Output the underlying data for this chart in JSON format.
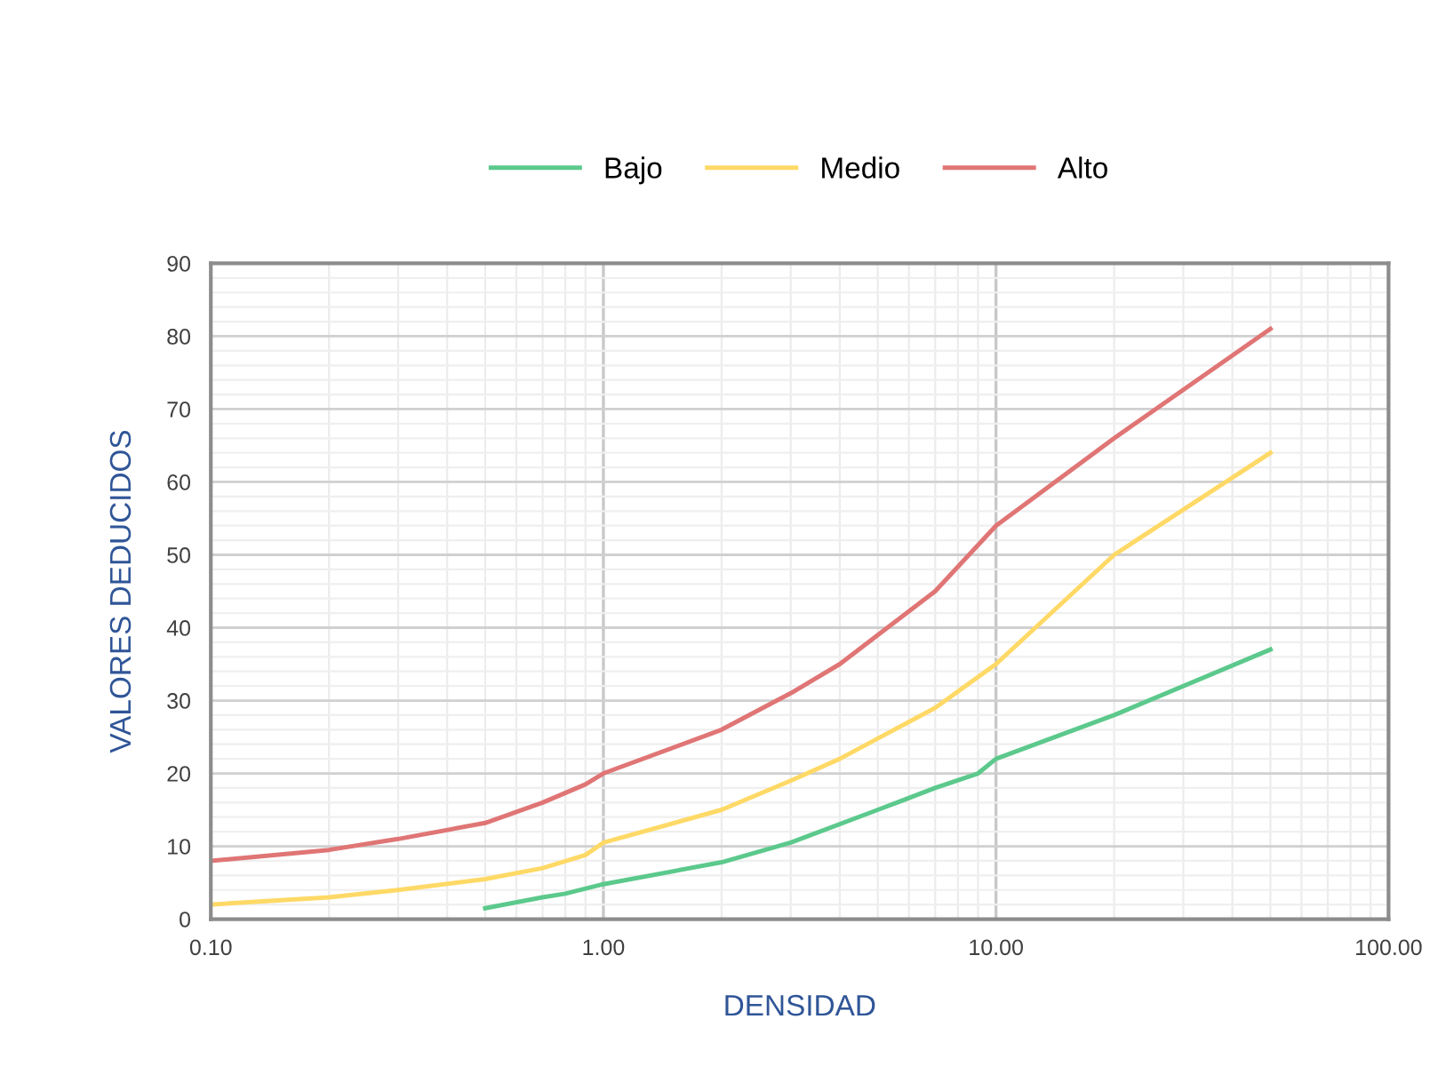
{
  "chart_data": {
    "type": "line",
    "xlabel": "DENSIDAD",
    "ylabel": "VALORES DEDUCIDOS",
    "log": "x",
    "grid": true,
    "legend": "top",
    "marker": "none",
    "line_style": "solid",
    "xlim": [
      0.1,
      100
    ],
    "xticks": [
      {
        "value": 0.1,
        "label": "0.10"
      },
      {
        "value": 1,
        "label": "1.00"
      },
      {
        "value": 10,
        "label": "10.00"
      },
      {
        "value": 100,
        "label": "100.00"
      }
    ],
    "ylim": [
      0,
      90
    ],
    "yticks": [
      0,
      10,
      20,
      30,
      40,
      50,
      60,
      70,
      80,
      90
    ],
    "series": [
      {
        "name": "Bajo",
        "color": "#5cc98c",
        "x": [
          0.5,
          0.7,
          0.8,
          1,
          2,
          3,
          5,
          7,
          9,
          10,
          20,
          50
        ],
        "values": [
          1.5,
          3,
          3.5,
          4.8,
          7.8,
          10.5,
          15,
          18,
          20,
          22,
          28,
          37
        ]
      },
      {
        "name": "Medio",
        "color": "#ffd966",
        "x": [
          0.1,
          0.2,
          0.3,
          0.5,
          0.7,
          0.9,
          1,
          2,
          3,
          4,
          7,
          10,
          20,
          50
        ],
        "values": [
          2,
          3,
          4,
          5.5,
          7,
          8.8,
          10.5,
          15,
          19,
          22,
          29,
          35,
          50,
          64
        ]
      },
      {
        "name": "Alto",
        "color": "#e07575",
        "x": [
          0.1,
          0.2,
          0.3,
          0.5,
          0.7,
          0.9,
          1,
          2,
          3,
          4,
          5,
          7,
          10,
          20,
          50
        ],
        "values": [
          8,
          9.5,
          11,
          13.2,
          16,
          18.5,
          20,
          26,
          31,
          35,
          39,
          45,
          54,
          66,
          81
        ]
      }
    ]
  }
}
